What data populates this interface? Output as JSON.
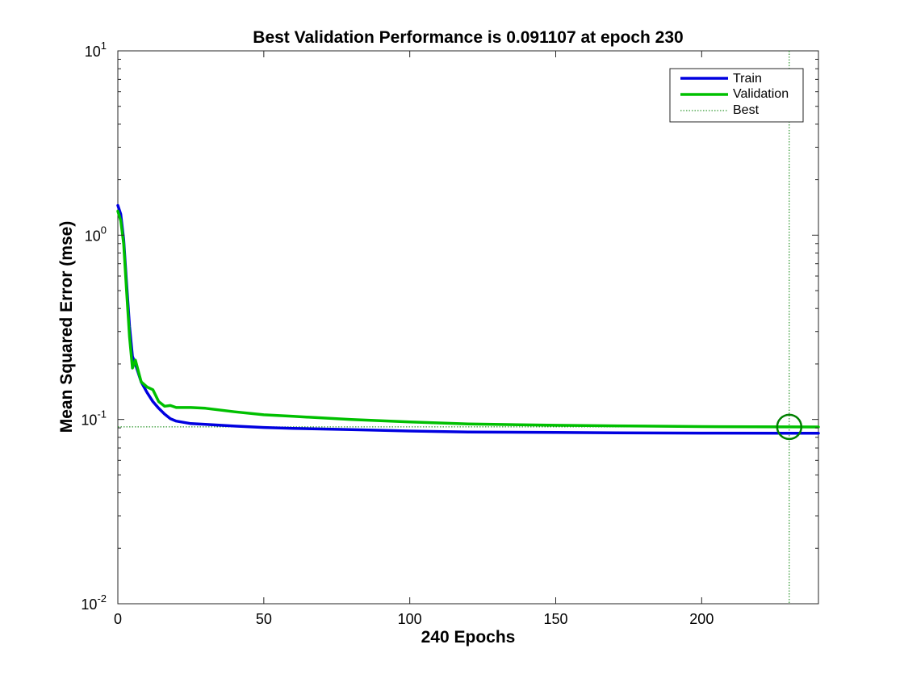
{
  "chart_data": {
    "type": "line",
    "title": "Best Validation Performance is 0.091107 at epoch 230",
    "xlabel": "240 Epochs",
    "ylabel": "Mean Squared Error  (mse)",
    "xlim": [
      0,
      240
    ],
    "ylim": [
      0.01,
      10
    ],
    "yscale": "log",
    "grid": false,
    "legend_position": "top-right",
    "x_ticks": [
      0,
      50,
      100,
      150,
      200
    ],
    "y_ticks": [
      {
        "value": 0.01,
        "base": "10",
        "exp": "-2"
      },
      {
        "value": 0.1,
        "base": "10",
        "exp": "-1"
      },
      {
        "value": 1,
        "base": "10",
        "exp": "0"
      },
      {
        "value": 10,
        "base": "10",
        "exp": "1"
      }
    ],
    "series": [
      {
        "name": "Train",
        "color": "#0000e0",
        "style": "solid",
        "x": [
          0,
          1,
          2,
          3,
          4,
          5,
          6,
          8,
          10,
          12,
          14,
          16,
          18,
          20,
          25,
          30,
          40,
          50,
          60,
          80,
          100,
          120,
          150,
          180,
          200,
          230,
          240
        ],
        "y": [
          1.45,
          1.3,
          0.95,
          0.55,
          0.32,
          0.22,
          0.2,
          0.16,
          0.14,
          0.125,
          0.115,
          0.107,
          0.101,
          0.098,
          0.095,
          0.094,
          0.092,
          0.0905,
          0.0895,
          0.088,
          0.0865,
          0.0855,
          0.085,
          0.0845,
          0.0843,
          0.0842,
          0.0841
        ]
      },
      {
        "name": "Validation",
        "color": "#00c000",
        "style": "solid",
        "x": [
          0,
          1,
          2,
          3,
          4,
          5,
          6,
          8,
          10,
          12,
          14,
          16,
          18,
          20,
          25,
          30,
          40,
          50,
          60,
          80,
          100,
          120,
          150,
          180,
          200,
          230,
          240
        ],
        "y": [
          1.35,
          1.2,
          0.9,
          0.5,
          0.28,
          0.19,
          0.21,
          0.16,
          0.15,
          0.145,
          0.125,
          0.118,
          0.119,
          0.116,
          0.116,
          0.115,
          0.11,
          0.106,
          0.104,
          0.1,
          0.097,
          0.0945,
          0.093,
          0.092,
          0.0915,
          0.091107,
          0.091
        ]
      }
    ],
    "best": {
      "name": "Best",
      "epoch": 230,
      "value": 0.091107,
      "color": "#008000",
      "style": "dotted"
    }
  }
}
